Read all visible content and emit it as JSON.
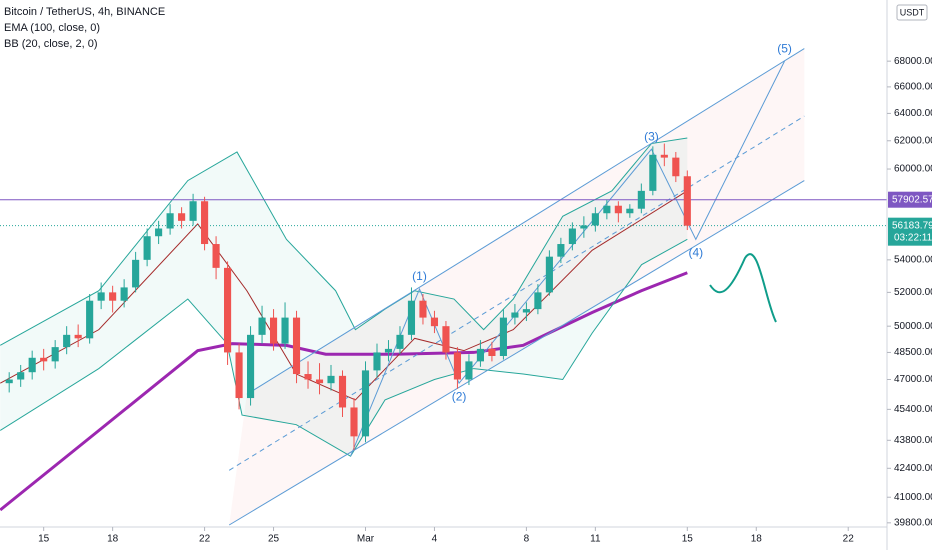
{
  "chart_data": {
    "type": "candlestick",
    "title": "Bitcoin / TetherUS, 4h, BINANCE",
    "indicators": [
      "EMA (100, close, 0)",
      "BB (20, close, 2, 0)"
    ],
    "currency": "USDT",
    "countdown": "03:22:11",
    "up_color": "#26a69a",
    "down_color": "#ef5350",
    "log_scale": true,
    "grid": false,
    "xlim": [
      13.1,
      51.6
    ],
    "xticks": [
      15,
      18,
      22,
      25,
      {
        "value": 29,
        "label": "Mar"
      },
      {
        "value": 32,
        "label": "4"
      },
      {
        "value": 36,
        "label": "8"
      },
      {
        "value": 39,
        "label": "11"
      },
      {
        "value": 43,
        "label": "15"
      },
      {
        "value": 46,
        "label": "18"
      },
      {
        "value": 50,
        "label": "22"
      }
    ],
    "ylim": [
      39700,
      73000
    ],
    "yticks": [
      {
        "value": 68000,
        "label": "68000.00"
      },
      {
        "value": 66000,
        "label": "66000.00"
      },
      {
        "value": 64000,
        "label": "64000.00"
      },
      {
        "value": 62000,
        "label": "62000.00"
      },
      {
        "value": 60000,
        "label": "60000.00"
      },
      {
        "value": 54000,
        "label": "54000.00"
      },
      {
        "value": 52000,
        "label": "52000.00"
      },
      {
        "value": 50000,
        "label": "50000.00"
      },
      {
        "value": 48500,
        "label": "48500.00"
      },
      {
        "value": 47000,
        "label": "47000.00"
      },
      {
        "value": 45400,
        "label": "45400.00"
      },
      {
        "value": 43800,
        "label": "43800.00"
      },
      {
        "value": 42400,
        "label": "42400.00"
      },
      {
        "value": 41000,
        "label": "41000.00"
      },
      {
        "value": 39800,
        "label": "39800.00"
      }
    ],
    "x": [
      13.5,
      14,
      14.5,
      15,
      15.5,
      16,
      16.5,
      17,
      17.5,
      18,
      18.5,
      19,
      19.5,
      20,
      20.5,
      21,
      21.5,
      22,
      22.5,
      23,
      23.5,
      24,
      24.5,
      25,
      25.5,
      26,
      26.5,
      27,
      27.5,
      28,
      28.5,
      29,
      29.5,
      30,
      30.5,
      31,
      31.5,
      32,
      32.5,
      33,
      33.5,
      34,
      34.5,
      35,
      35.5,
      36,
      36.5,
      37,
      37.5,
      38,
      38.5,
      39,
      39.5,
      40,
      40.5,
      41,
      41.5,
      42,
      42.5,
      43
    ],
    "open": [
      46800,
      47000,
      47400,
      48200,
      48000,
      48800,
      49500,
      49300,
      51500,
      52000,
      51500,
      52300,
      54000,
      55500,
      56000,
      57000,
      56500,
      57800,
      55000,
      53500,
      48500,
      46000,
      49500,
      50500,
      49000,
      50500,
      47300,
      47000,
      46800,
      47200,
      45500,
      44000,
      47500,
      48500,
      48700,
      49500,
      51500,
      50500,
      50000,
      48500,
      47000,
      48000,
      48700,
      48300,
      50500,
      50800,
      51000,
      52000,
      54200,
      55000,
      56000,
      56200,
      57000,
      57500,
      57000,
      57300,
      58500,
      61000,
      60800,
      59500
    ],
    "high": [
      47400,
      47800,
      48600,
      48700,
      49200,
      50000,
      50100,
      51900,
      52600,
      52400,
      52800,
      54500,
      56000,
      56500,
      57600,
      57400,
      58300,
      58100,
      55500,
      53900,
      49000,
      50000,
      51200,
      51000,
      51400,
      50900,
      48000,
      47900,
      47800,
      47500,
      46000,
      48000,
      49000,
      49200,
      50000,
      52300,
      51900,
      50900,
      50300,
      48800,
      48400,
      49200,
      49100,
      51000,
      51300,
      51400,
      52500,
      54600,
      55400,
      56400,
      56800,
      57400,
      57900,
      57800,
      57600,
      59000,
      61600,
      61800,
      61200,
      59900
    ],
    "low": [
      46300,
      46600,
      47000,
      47500,
      47600,
      48400,
      48800,
      49000,
      51000,
      50800,
      51100,
      52000,
      53600,
      55000,
      55600,
      56000,
      56200,
      54600,
      52800,
      47800,
      45400,
      45600,
      49000,
      48600,
      48700,
      46800,
      46500,
      46200,
      46400,
      45000,
      43300,
      43700,
      47100,
      48000,
      48400,
      49200,
      50100,
      49600,
      48100,
      46500,
      46700,
      47700,
      48000,
      48100,
      50100,
      50300,
      50700,
      51800,
      53800,
      54600,
      55400,
      55800,
      56600,
      56400,
      56700,
      57000,
      58200,
      60200,
      59100,
      55900
    ],
    "close": [
      47000,
      47400,
      48200,
      48000,
      48800,
      49500,
      49300,
      51500,
      52000,
      51500,
      52300,
      54000,
      55500,
      56000,
      57000,
      56500,
      57800,
      55000,
      53500,
      48500,
      46000,
      49500,
      50500,
      49000,
      50500,
      47300,
      47000,
      46800,
      47200,
      45500,
      44000,
      47500,
      48500,
      48700,
      49500,
      51500,
      50500,
      50000,
      48500,
      47000,
      48000,
      48700,
      48300,
      50500,
      50800,
      51000,
      52000,
      54200,
      55000,
      56000,
      56200,
      57000,
      57500,
      57000,
      57300,
      58500,
      61000,
      60800,
      59500,
      56183.79
    ],
    "lines": [
      {
        "color": "#9c27b0",
        "width": 3,
        "x": [
          13.11,
          17.4,
          21.7,
          23.2,
          25.56,
          27.27,
          30.28,
          33.71,
          35.86,
          38.86,
          41.0,
          43.0
        ],
        "values": [
          40400,
          44300,
          48600,
          49000,
          48900,
          48400,
          48400,
          48500,
          48900,
          50800,
          52100,
          53200
        ]
      },
      {
        "color": "#26a69a",
        "width": 1,
        "x": [
          13.11,
          17.4,
          21.27,
          23.41,
          25.56,
          27.7,
          28.56,
          29.85,
          31.14,
          32.85,
          34.14,
          35.43,
          37.58,
          39.72,
          41.44,
          43.0
        ],
        "values": [
          48900,
          52100,
          59200,
          61200,
          55300,
          52100,
          49800,
          51000,
          52100,
          51600,
          49800,
          51600,
          56800,
          58500,
          61800,
          62200
        ]
      },
      {
        "color": "#a52a2a",
        "width": 1,
        "x": [
          13.11,
          17.4,
          21.7,
          23.84,
          25.99,
          28.56,
          31.14,
          33.28,
          35.43,
          38.86,
          43.0
        ],
        "values": [
          46800,
          49800,
          56300,
          52100,
          47300,
          45900,
          49300,
          48600,
          49800,
          54600,
          58500
        ]
      },
      {
        "color": "#26a69a",
        "width": 1,
        "x": [
          13.11,
          17.4,
          21.27,
          22.98,
          23.63,
          25.99,
          28.35,
          29.85,
          32.0,
          33.71,
          35.86,
          37.58,
          38.86,
          41.01,
          43.0
        ],
        "values": [
          44300,
          47600,
          51600,
          49000,
          45100,
          44600,
          43000,
          45900,
          47000,
          47600,
          47300,
          47000,
          49600,
          53700,
          55300
        ]
      },
      {
        "color": "#5b9bd5",
        "width": 1,
        "x": [
          23.84,
          48.09
        ],
        "values": [
          46200,
          69000
        ]
      },
      {
        "color": "#5b9bd5",
        "width": 1,
        "dash": true,
        "x": [
          23.07,
          48.09
        ],
        "values": [
          42300,
          63800
        ]
      },
      {
        "color": "#5b9bd5",
        "width": 1,
        "x": [
          23.07,
          48.09
        ],
        "values": [
          39700,
          59200
        ]
      },
      {
        "color": "#5b9bd5",
        "width": 1,
        "x": [
          28.35,
          31.35,
          33.07,
          41.44,
          43.37,
          47.23
        ],
        "values": [
          43000,
          52200,
          46800,
          61400,
          55300,
          68000
        ]
      }
    ],
    "hlines": [
      {
        "value": 57902.57,
        "label": "57902.57",
        "color": "#7e57c2"
      },
      {
        "value": 56183.79,
        "label": "56183.79",
        "color": "#26a69a"
      }
    ],
    "annotations": [
      {
        "text": "(1)",
        "x": 31.35,
        "y": 52200,
        "position": "above"
      },
      {
        "text": "(2)",
        "x": 33.07,
        "y": 46800,
        "position": "below"
      },
      {
        "text": "(3)",
        "x": 41.44,
        "y": 61400,
        "position": "above"
      },
      {
        "text": "(4)",
        "x": 43.37,
        "y": 55300,
        "position": "below"
      },
      {
        "text": "(5)",
        "x": 47.23,
        "y": 68000,
        "position": "above"
      }
    ]
  }
}
